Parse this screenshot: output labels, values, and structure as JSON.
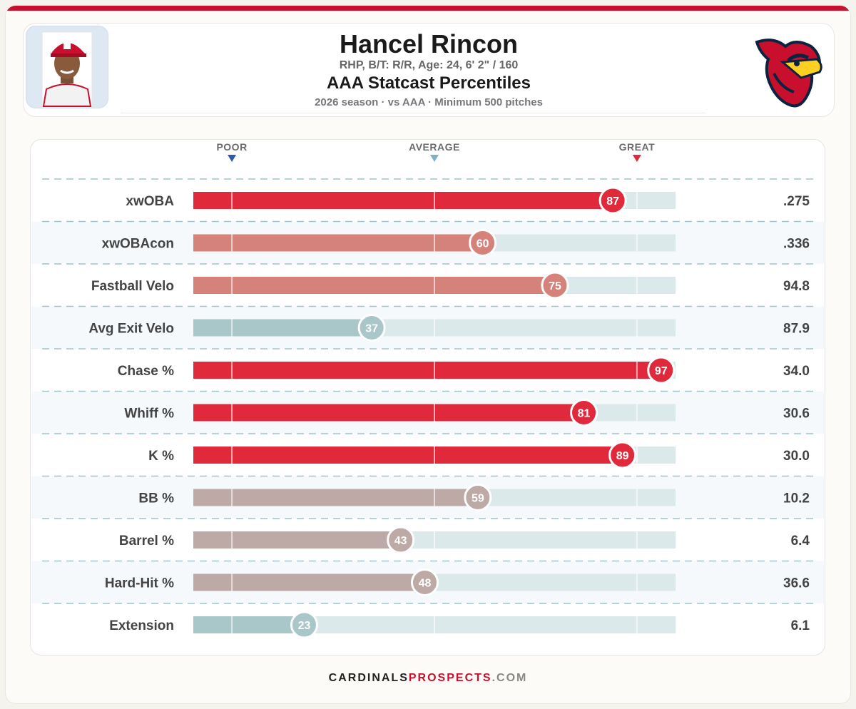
{
  "player": {
    "name": "Hancel Rincon",
    "bio": "RHP, B/T: R/R, Age: 24, 6' 2\" / 160",
    "title": "AAA Statcast Percentiles",
    "subtitle": "2026 season · vs AAA · Minimum 500 pitches"
  },
  "icons": {
    "player_photo": "player-headshot",
    "team_logo": "cardinal-bird-logo"
  },
  "colors": {
    "great": "#e0293a",
    "good": "#d5827a",
    "neutral": "#bda9a6",
    "cool": "#a9c6c8",
    "track": "#dce9ea",
    "accent": "#c8102e"
  },
  "chart_data": {
    "type": "bar",
    "orientation": "horizontal",
    "scale": {
      "min": 0,
      "max": 100
    },
    "scale_labels": [
      {
        "label": "POOR",
        "at": 8
      },
      {
        "label": "AVERAGE",
        "at": 50
      },
      {
        "label": "GREAT",
        "at": 92
      }
    ],
    "categories": [
      "xwOBA",
      "xwOBAcon",
      "Fastball Velo",
      "Avg Exit Velo",
      "Chase %",
      "Whiff %",
      "K %",
      "BB %",
      "Barrel %",
      "Hard-Hit %",
      "Extension"
    ],
    "percentiles": [
      87,
      60,
      75,
      37,
      97,
      81,
      89,
      59,
      43,
      48,
      23
    ],
    "stat_values": [
      ".275",
      ".336",
      "94.8",
      "87.9",
      "34.0",
      "30.6",
      "30.0",
      "10.2",
      "6.4",
      "36.6",
      "6.1"
    ],
    "grid": true
  },
  "footer": {
    "part1": "CARDINALS",
    "part2": "PROSPECTS",
    "part3": ".COM"
  }
}
